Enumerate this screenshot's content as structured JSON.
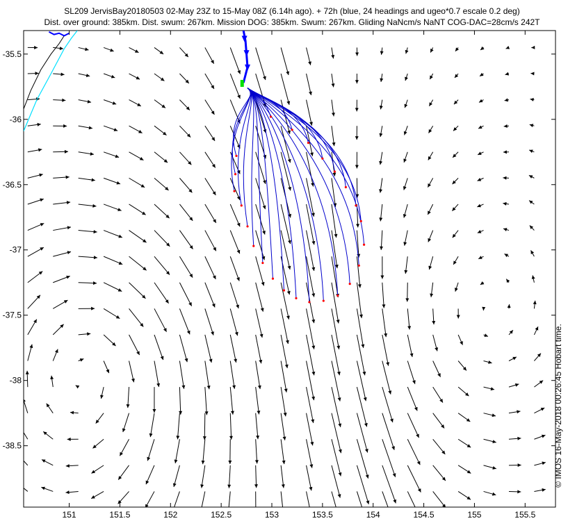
{
  "chart_data": {
    "type": "vector-field-map",
    "title_line1": "SL209 JervisBay20180503 02-May 23Z to 15-May 08Z (6.14h ago). + 72h (blue, 24 headings and ugeo*0.7 escale 0.2 deg)",
    "title_line2": "Dist. over ground: 385km. Dist. swum: 267km. Mission DOG: 385km. Swum: 267km. Gliding NaNcm/s NaNT COG-DAC=28cm/s 242T",
    "side_caption": "© IMOS 16-May-2018 00:26:45 Hobart time.",
    "xlim": [
      150.55,
      155.8
    ],
    "ylim": [
      -38.97,
      -35.32
    ],
    "x_ticks": [
      {
        "value": 151,
        "label": "151"
      },
      {
        "value": 151.5,
        "label": "151.5"
      },
      {
        "value": 152,
        "label": "152"
      },
      {
        "value": 152.5,
        "label": "152.5"
      },
      {
        "value": 153,
        "label": "153"
      },
      {
        "value": 153.5,
        "label": "153.5"
      },
      {
        "value": 154,
        "label": "154"
      },
      {
        "value": 154.5,
        "label": "154.5"
      },
      {
        "value": 155,
        "label": "155"
      },
      {
        "value": 155.5,
        "label": "155.5"
      }
    ],
    "y_ticks": [
      {
        "value": -35.5,
        "label": "-35.5"
      },
      {
        "value": -36,
        "label": "-36"
      },
      {
        "value": -36.5,
        "label": "-36.5"
      },
      {
        "value": -37,
        "label": "-37"
      },
      {
        "value": -37.5,
        "label": "-37.5"
      },
      {
        "value": -38,
        "label": "-38"
      },
      {
        "value": -38.5,
        "label": "-38.5"
      }
    ],
    "coastline_black": [
      [
        150.55,
        -35.92
      ],
      [
        150.62,
        -35.78
      ],
      [
        150.72,
        -35.62
      ],
      [
        150.82,
        -35.5
      ],
      [
        150.9,
        -35.42
      ],
      [
        150.95,
        -35.36
      ]
    ],
    "coastline_cyan": [
      [
        150.55,
        -36.09
      ],
      [
        150.68,
        -35.85
      ],
      [
        150.82,
        -35.65
      ],
      [
        150.95,
        -35.46
      ],
      [
        151.02,
        -35.38
      ],
      [
        151.08,
        -35.32
      ]
    ],
    "glider_track": [
      [
        152.72,
        -35.32
      ],
      [
        152.74,
        -35.4
      ],
      [
        152.75,
        -35.5
      ],
      [
        152.76,
        -35.6
      ],
      [
        152.74,
        -35.66
      ],
      [
        152.72,
        -35.72
      ]
    ],
    "glider_position": {
      "lon": 152.71,
      "lat": -35.73
    },
    "projection_origin": {
      "lon": 152.76,
      "lat": -35.76
    },
    "projected_endpoints": [
      [
        152.65,
        -36.28
      ],
      [
        152.64,
        -36.42
      ],
      [
        152.63,
        -36.55
      ],
      [
        152.7,
        -36.66
      ],
      [
        152.76,
        -36.82
      ],
      [
        152.82,
        -36.97
      ],
      [
        152.91,
        -37.1
      ],
      [
        153.01,
        -37.22
      ],
      [
        153.12,
        -37.31
      ],
      [
        153.24,
        -37.37
      ],
      [
        153.37,
        -37.4
      ],
      [
        153.51,
        -37.39
      ],
      [
        153.65,
        -37.35
      ],
      [
        153.77,
        -37.26
      ],
      [
        153.86,
        -37.12
      ],
      [
        153.91,
        -36.96
      ],
      [
        153.88,
        -36.78
      ],
      [
        153.83,
        -36.66
      ],
      [
        153.73,
        -36.52
      ],
      [
        153.62,
        -36.4
      ],
      [
        153.5,
        -36.3
      ],
      [
        153.36,
        -36.18
      ],
      [
        153.2,
        -36.08
      ],
      [
        152.99,
        -35.98
      ]
    ],
    "currents": {
      "lon0": 150.55,
      "dlon": 0.25,
      "lat0": -35.45,
      "dlat": -0.2,
      "arrow_scale_deg": 0.2,
      "stream": [
        {
          "lon": 152.7,
          "lat": -35.3,
          "w": 0.4
        },
        {
          "lon": 152.8,
          "lat": -35.7,
          "w": 0.3
        }
      ],
      "eddy": {
        "lon": 151.2,
        "lat": -37.9,
        "r": 0.9
      },
      "east_eddy": {
        "lon": 155.0,
        "lat": -37.6,
        "r": 1.0
      }
    }
  }
}
